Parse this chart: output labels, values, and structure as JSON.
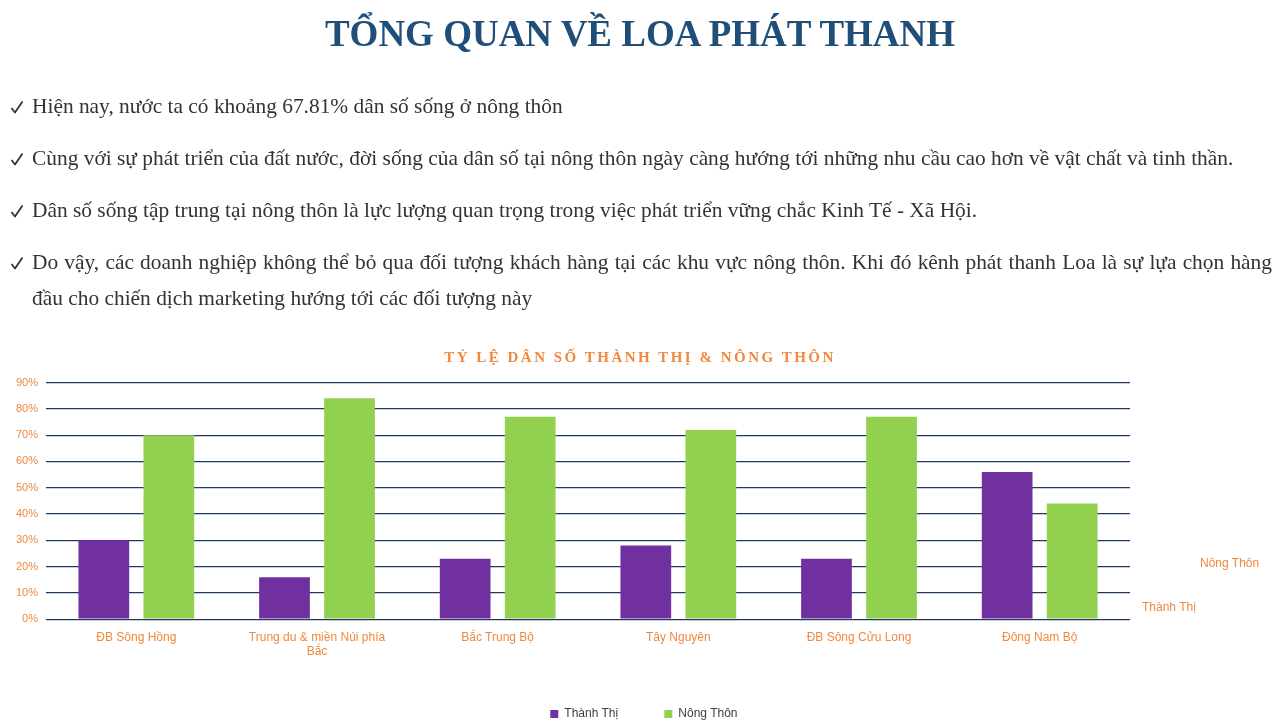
{
  "chart_data": {
    "type": "bar",
    "title": "TỔNG QUAN VỀ LOA PHÁT THANH",
    "subtitle": "TỶ LỆ DÂN SỐ THÀNH THỊ & NÔNG THÔN",
    "annotations": [
      "Hiện nay, nước ta có khoảng 67.81% dân số sống ở nông thôn",
      "Cùng với sự phát triển của đất nước, đời sống của dân số tại nông thôn ngày càng hướng tới những nhu cầu cao hơn về vật chất và tinh thần.",
      "Dân số sống tập trung tại nông thôn là lực lượng quan trọng trong việc phát triển vững chắc Kinh Tế - Xã Hội.",
      "Do vậy, các doanh nghiệp không thể bỏ qua đối tượng khách hàng tại các khu vực nông thôn. Khi đó kênh phát thanh Loa là sự lựa chọn hàng đầu cho chiến dịch marketing hướng tới các đối tượng này"
    ],
    "categories": [
      "ĐB Sông Hồng",
      "Trung du & miền Núi phía Bắc",
      "Bắc Trung Bộ",
      "Tây Nguyên",
      "ĐB Sông Cửu Long",
      "Đông Nam Bộ"
    ],
    "series": [
      {
        "name": "Thành Thị",
        "color": "#7030a0",
        "values": [
          30,
          16,
          23,
          28,
          23,
          56
        ]
      },
      {
        "name": "Nông Thôn",
        "color": "#92d050",
        "values": [
          70,
          84,
          77,
          72,
          77,
          44
        ]
      }
    ],
    "ylim": [
      0,
      90
    ],
    "yticks": [
      {
        "value": 0,
        "label": "0%"
      },
      {
        "value": 10,
        "label": "10%"
      },
      {
        "value": 20,
        "label": "20%"
      },
      {
        "value": 30,
        "label": "30%"
      },
      {
        "value": 40,
        "label": "40%"
      },
      {
        "value": 50,
        "label": "50%"
      },
      {
        "value": 60,
        "label": "60%"
      },
      {
        "value": 70,
        "label": "70%"
      },
      {
        "value": 80,
        "label": "80%"
      },
      {
        "value": 90,
        "label": "90%"
      }
    ],
    "grid": "y",
    "legend": "bottom"
  }
}
